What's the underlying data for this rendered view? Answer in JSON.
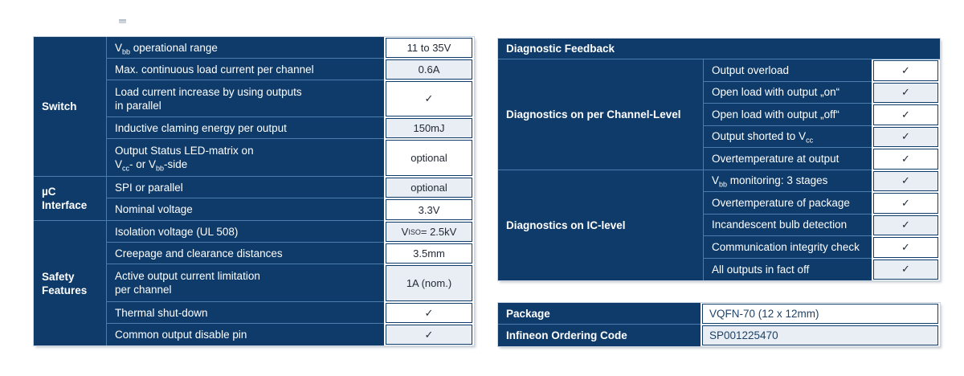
{
  "colors": {
    "table_dark_blue": "#0E3B69",
    "cell_separator_blue": "#4A7CAE",
    "light_value_cell": "#E9EEF5",
    "value_text": "#222A35",
    "package_value_text": "#1D4266"
  },
  "left_table": {
    "groups": [
      {
        "line1": "Switch"
      },
      {
        "line1": "µC",
        "line2": "Interface"
      },
      {
        "line1": "Safety",
        "line2": "Features"
      }
    ],
    "rows": [
      {
        "l1a": "V",
        "l1sub": "bb",
        "l1b": " operational range",
        "value": "11 to 35V"
      },
      {
        "l1a": "Max. continuous load current per channel",
        "value": "0.6A"
      },
      {
        "l1a": "Load current increase by using outputs",
        "l2a": "in parallel",
        "value": "✓"
      },
      {
        "l1a": "Inductive claming energy per output",
        "value": "150mJ"
      },
      {
        "l1a": "Output Status LED-matrix on",
        "l2a": "V",
        "l2sub1": "cc",
        "l2b": "- or V",
        "l2sub2": "bb",
        "l2c": "-side",
        "value": "optional"
      },
      {
        "l1a": "SPI or parallel",
        "value": "optional"
      },
      {
        "l1a": "Nominal voltage",
        "value": "3.3V"
      },
      {
        "l1a": "Isolation voltage (UL 508)",
        "v1": "V",
        "vsub": "ISO",
        "v2": " = 2.5kV"
      },
      {
        "l1a": "Creepage and clearance distances",
        "value": "3.5mm"
      },
      {
        "l1a": "Active output current limitation",
        "l2a": "per channel",
        "value": "1A (nom.)"
      },
      {
        "l1a": "Thermal shut-down",
        "value": "✓"
      },
      {
        "l1a": "Common output disable pin",
        "value": "✓"
      }
    ]
  },
  "right_table": {
    "header": "Diagnostic Feedback",
    "groups": [
      {
        "label": "Diagnostics on per Channel-Level"
      },
      {
        "label": "Diagnostics on IC-level"
      }
    ],
    "rows": [
      {
        "l1a": "Output overload",
        "value": "✓"
      },
      {
        "l1a": "Open load with output „on“",
        "value": "✓"
      },
      {
        "l1a": "Open load with output „off“",
        "value": "✓"
      },
      {
        "l1a": "Output shorted to V",
        "l1sub": "cc",
        "value": "✓"
      },
      {
        "l1a": "Overtemperature at output",
        "value": "✓"
      },
      {
        "l1a": "V",
        "l1sub": "bb",
        "l1b": " monitoring: 3 stages",
        "value": "✓"
      },
      {
        "l1a": "Overtemperature of package",
        "value": "✓"
      },
      {
        "l1a": "Incandescent bulb detection",
        "value": "✓"
      },
      {
        "l1a": "Communication integrity check",
        "value": "✓"
      },
      {
        "l1a": "All outputs in fact off",
        "value": "✓"
      }
    ]
  },
  "package_table": {
    "rows": [
      {
        "label": "Package",
        "value": "VQFN-70 (12 x 12mm)"
      },
      {
        "label": "Infineon Ordering Code",
        "value": "SP001225470"
      }
    ]
  }
}
